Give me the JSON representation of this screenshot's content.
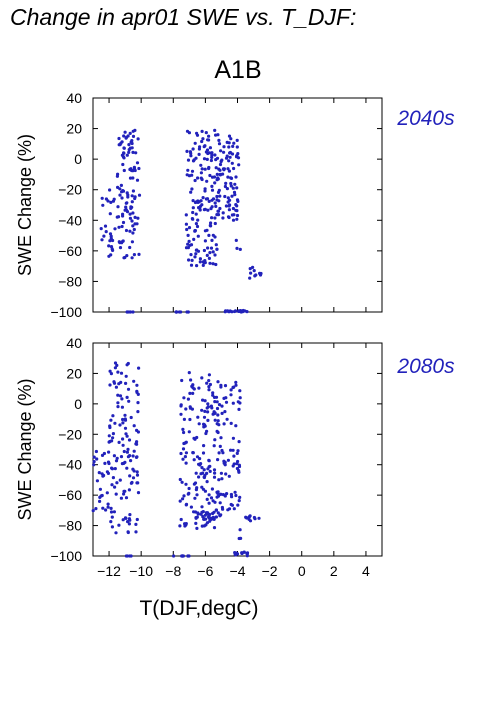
{
  "figure": {
    "title": "Change in apr01 SWE vs. T_DJF:",
    "scenario": "A1B",
    "xlabel": "T(DJF,degC)",
    "point_color": "#2222bb"
  },
  "chart_data": [
    {
      "type": "scatter",
      "period_label": "2040s",
      "ylabel": "SWE Change (%)",
      "xlabel": "",
      "xlim": [
        -13,
        5
      ],
      "ylim": [
        -100,
        40
      ],
      "xticks": [
        -12,
        -10,
        -8,
        -6,
        -4,
        -2,
        0,
        2,
        4
      ],
      "yticks": [
        -100,
        -80,
        -60,
        -40,
        -20,
        0,
        20,
        40
      ],
      "grid": false,
      "clusters": [
        {
          "x": [
            -12.6,
            -11.6
          ],
          "y": [
            -68,
            -20
          ],
          "n": 26
        },
        {
          "x": [
            -11.5,
            -10.1
          ],
          "y": [
            -65,
            19
          ],
          "n": 110
        },
        {
          "x": [
            -7.2,
            -5.2
          ],
          "y": [
            -70,
            19
          ],
          "n": 170
        },
        {
          "x": [
            -5.2,
            -3.9
          ],
          "y": [
            -40,
            17
          ],
          "n": 90
        },
        {
          "x": [
            -4.1,
            -3.7
          ],
          "y": [
            -62,
            -50
          ],
          "n": 3
        },
        {
          "x": [
            -3.3,
            -2.5
          ],
          "y": [
            -78,
            -70
          ],
          "n": 10
        },
        {
          "x": [
            -11.0,
            -10.5
          ],
          "y": [
            -100,
            -100
          ],
          "n": 5
        },
        {
          "x": [
            -8.0,
            -7.0
          ],
          "y": [
            -100,
            -100
          ],
          "n": 9
        },
        {
          "x": [
            -4.8,
            -3.3
          ],
          "y": [
            -100,
            -99
          ],
          "n": 18
        }
      ]
    },
    {
      "type": "scatter",
      "period_label": "2080s",
      "ylabel": "SWE Change (%)",
      "xlabel": "T(DJF,degC)",
      "xlim": [
        -13,
        5
      ],
      "ylim": [
        -100,
        40
      ],
      "xticks": [
        -12,
        -10,
        -8,
        -6,
        -4,
        -2,
        0,
        2,
        4
      ],
      "yticks": [
        -100,
        -80,
        -60,
        -40,
        -20,
        0,
        20,
        40
      ],
      "grid": false,
      "clusters": [
        {
          "x": [
            -13.0,
            -12.0
          ],
          "y": [
            -72,
            -30
          ],
          "n": 30
        },
        {
          "x": [
            -12.0,
            -10.1
          ],
          "y": [
            -85,
            30
          ],
          "n": 130
        },
        {
          "x": [
            -7.6,
            -5.4
          ],
          "y": [
            -82,
            21
          ],
          "n": 150
        },
        {
          "x": [
            -5.5,
            -3.8
          ],
          "y": [
            -70,
            15
          ],
          "n": 100
        },
        {
          "x": [
            -6.7,
            -5.0
          ],
          "y": [
            -76,
            -71
          ],
          "n": 30
        },
        {
          "x": [
            -3.5,
            -2.5
          ],
          "y": [
            -78,
            -72
          ],
          "n": 10
        },
        {
          "x": [
            -3.9,
            -3.7
          ],
          "y": [
            -92,
            -80
          ],
          "n": 3
        },
        {
          "x": [
            -11.0,
            -10.6
          ],
          "y": [
            -100,
            -100
          ],
          "n": 4
        },
        {
          "x": [
            -8.0,
            -7.0
          ],
          "y": [
            -100,
            -100
          ],
          "n": 10
        },
        {
          "x": [
            -4.3,
            -3.2
          ],
          "y": [
            -100,
            -97
          ],
          "n": 14
        }
      ]
    }
  ]
}
